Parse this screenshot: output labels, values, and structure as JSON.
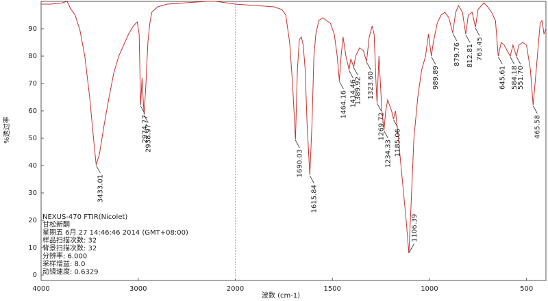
{
  "chart_data": {
    "type": "line",
    "color": "#c8302c",
    "x_label": "波数 (cm-1)",
    "y_label": "%透过率",
    "xlim": [
      4000,
      400
    ],
    "xticks": [
      4000,
      3000,
      2000,
      1500,
      1000,
      500
    ],
    "scale_break": 2000,
    "ylim": [
      -2,
      100
    ],
    "yticks": [
      0,
      10,
      20,
      30,
      40,
      50,
      60,
      70,
      80,
      90
    ],
    "x": [
      4000,
      3900,
      3800,
      3732,
      3700,
      3650,
      3600,
      3550,
      3500,
      3460,
      3433,
      3400,
      3350,
      3300,
      3250,
      3200,
      3150,
      3100,
      3050,
      3010,
      2990,
      2975,
      2960,
      2950,
      2939,
      2920,
      2900,
      2880,
      2860,
      2800,
      2700,
      2500,
      2300,
      2200,
      2100,
      2000,
      1900,
      1800,
      1760,
      1740,
      1720,
      1705,
      1690,
      1680,
      1670,
      1660,
      1650,
      1640,
      1630,
      1616,
      1605,
      1595,
      1585,
      1570,
      1550,
      1530,
      1510,
      1490,
      1475,
      1464,
      1455,
      1445,
      1430,
      1414,
      1405,
      1390,
      1380,
      1360,
      1340,
      1324,
      1310,
      1295,
      1285,
      1275,
      1270,
      1260,
      1245,
      1234,
      1225,
      1215,
      1205,
      1195,
      1185,
      1175,
      1160,
      1140,
      1120,
      1106,
      1095,
      1080,
      1060,
      1040,
      1020,
      1005,
      990,
      980,
      960,
      940,
      920,
      900,
      880,
      865,
      850,
      830,
      813,
      800,
      780,
      763,
      750,
      720,
      700,
      680,
      660,
      646,
      630,
      615,
      600,
      584,
      570,
      552,
      540,
      520,
      500,
      480,
      466,
      450,
      430,
      420,
      410,
      400
    ],
    "values": [
      99,
      99,
      99.3,
      100,
      97.5,
      95,
      89.5,
      80,
      65,
      50,
      40.3,
      44,
      55,
      65,
      74,
      80,
      84,
      88,
      91,
      92.5,
      88,
      62,
      72,
      65,
      58.6,
      70,
      85,
      92,
      96,
      98,
      99,
      99.5,
      100,
      100,
      99.5,
      99,
      98.5,
      98,
      97,
      95,
      85,
      70,
      49.5,
      75,
      86,
      87,
      84,
      75,
      55,
      36.5,
      55,
      80,
      88,
      93,
      94,
      93,
      92,
      88,
      80,
      71,
      80,
      87,
      80,
      75,
      79,
      76,
      80,
      83,
      82,
      78,
      87,
      91,
      88,
      70,
      63,
      80,
      60,
      53,
      60,
      64,
      62,
      60,
      57,
      60,
      50,
      35,
      20,
      8,
      25,
      50,
      65,
      75,
      80,
      88,
      80,
      85,
      92,
      95,
      96,
      94,
      88.5,
      96,
      98.5,
      96,
      88,
      95,
      96,
      90.5,
      97,
      99.5,
      98,
      96,
      93,
      80,
      85,
      84,
      82,
      80,
      84,
      80,
      84,
      85,
      84,
      75,
      62,
      75,
      92,
      93,
      88,
      90
    ],
    "peaks": [
      {
        "x": 3433.01,
        "y": 40.3,
        "label": "3433.01"
      },
      {
        "x": 2974.77,
        "y": 62,
        "label": "2974.77"
      },
      {
        "x": 2938.97,
        "y": 58.6,
        "label": "2938.97"
      },
      {
        "x": 1690.03,
        "y": 49.5,
        "label": "1690.03"
      },
      {
        "x": 1615.84,
        "y": 36.5,
        "label": "1615.84"
      },
      {
        "x": 1464.16,
        "y": 71,
        "label": "1464.16"
      },
      {
        "x": 1414.46,
        "y": 75,
        "label": "1414.46"
      },
      {
        "x": 1389.92,
        "y": 76,
        "label": "1389.92"
      },
      {
        "x": 1323.6,
        "y": 78,
        "label": "1323.60"
      },
      {
        "x": 1269.72,
        "y": 63,
        "label": "1269.72"
      },
      {
        "x": 1234.33,
        "y": 53,
        "label": "1234.33"
      },
      {
        "x": 1185.06,
        "y": 57,
        "label": "1185.06"
      },
      {
        "x": 1106.39,
        "y": 8,
        "label": "1106.39"
      },
      {
        "x": 989.89,
        "y": 80,
        "label": "989.89"
      },
      {
        "x": 879.76,
        "y": 88.5,
        "label": "879.76"
      },
      {
        "x": 812.81,
        "y": 88,
        "label": "812.81"
      },
      {
        "x": 763.45,
        "y": 90.5,
        "label": "763.45"
      },
      {
        "x": 645.61,
        "y": 80,
        "label": "645.61"
      },
      {
        "x": 584.18,
        "y": 80,
        "label": "584.18"
      },
      {
        "x": 551.7,
        "y": 80,
        "label": "551.70"
      },
      {
        "x": 465.58,
        "y": 62,
        "label": "465.58"
      }
    ],
    "info_lines": [
      "NEXUS-470 FTIR(Nicolet)",
      "甘松新酮",
      "星期五 6月 27 14:46:46 2014 (GMT+08:00)",
      "样品扫描次数: 32",
      "背景扫描次数: 32",
      "分辨率:  6.000",
      "采样增益: 8.0",
      "动镜速度: 0.6329"
    ]
  }
}
